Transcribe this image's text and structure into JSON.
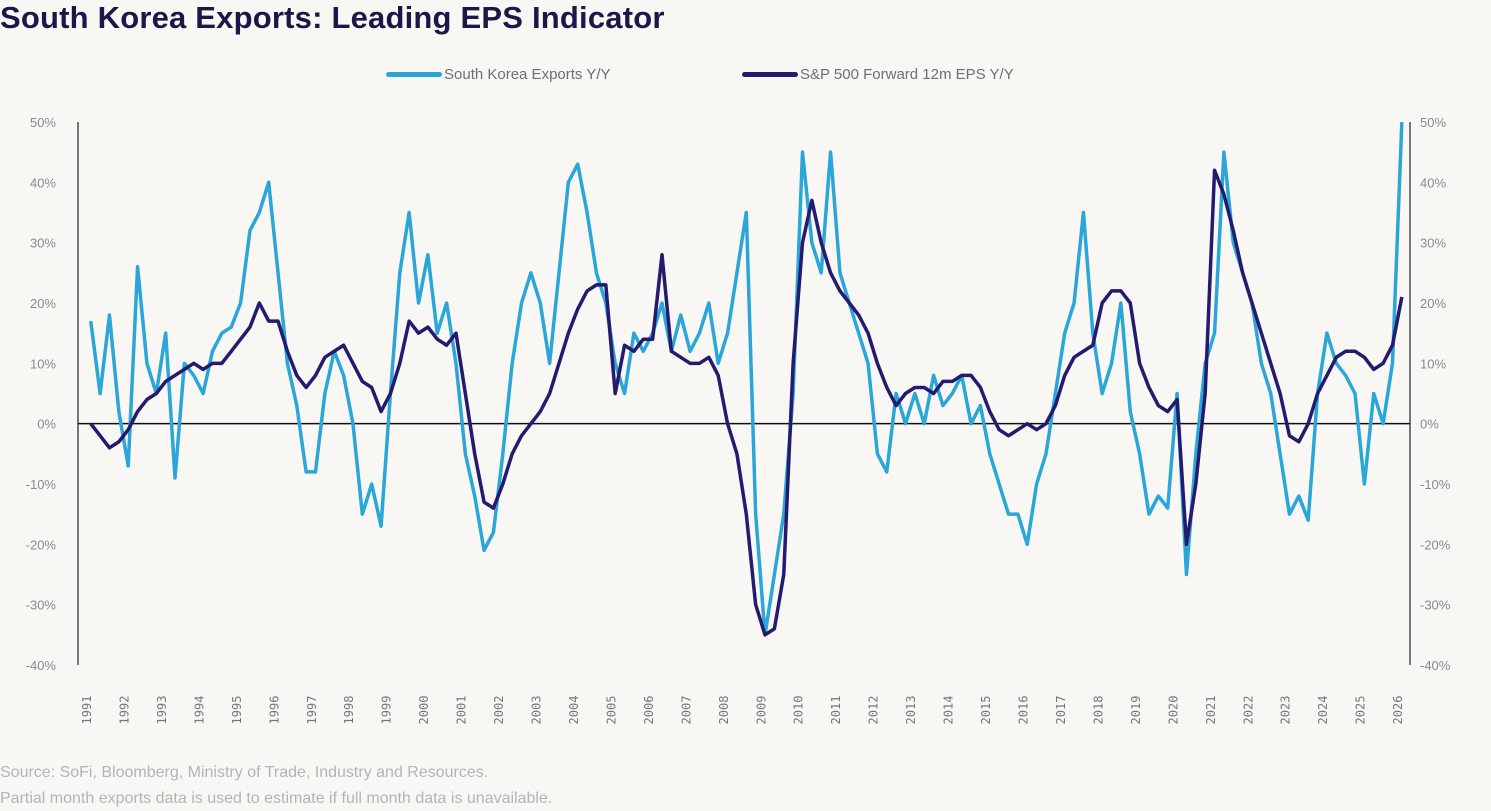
{
  "chart_data": {
    "type": "line",
    "title": "South Korea Exports: Leading EPS Indicator",
    "legend_position": "top-center",
    "ylim": [
      -40,
      50
    ],
    "y_ticks": [
      "50%",
      "40%",
      "30%",
      "20%",
      "10%",
      "0%",
      "-10%",
      "-20%",
      "-30%",
      "-40%"
    ],
    "y_tick_values": [
      50,
      40,
      30,
      20,
      10,
      0,
      -10,
      -20,
      -30,
      -40
    ],
    "x_ticks": [
      "1991",
      "1992",
      "1993",
      "1994",
      "1995",
      "1996",
      "1997",
      "1998",
      "1999",
      "2000",
      "2001",
      "2002",
      "2003",
      "2004",
      "2005",
      "2006",
      "2007",
      "2008",
      "2009",
      "2010",
      "2011",
      "2012",
      "2013",
      "2014",
      "2015",
      "2016",
      "2017",
      "2018",
      "2019",
      "2020",
      "2021",
      "2022",
      "2023",
      "2024",
      "2025",
      "2026"
    ],
    "x_unit": "quarterly, year 1991 Q1 through 2026 Q1",
    "series": [
      {
        "name": "South Korea Exports Y/Y",
        "color": "#2aa7d8",
        "values": [
          17,
          5,
          18,
          2,
          -7,
          26,
          10,
          5,
          15,
          -9,
          10,
          8,
          5,
          12,
          15,
          16,
          20,
          32,
          35,
          40,
          25,
          10,
          3,
          -8,
          -8,
          5,
          12,
          8,
          0,
          -15,
          -10,
          -17,
          5,
          25,
          35,
          20,
          28,
          15,
          20,
          10,
          -5,
          -12,
          -21,
          -18,
          -5,
          10,
          20,
          25,
          20,
          10,
          25,
          40,
          43,
          35,
          25,
          20,
          10,
          5,
          15,
          12,
          15,
          20,
          12,
          18,
          12,
          15,
          20,
          10,
          15,
          25,
          35,
          -15,
          -35,
          -25,
          -15,
          5,
          45,
          30,
          25,
          45,
          25,
          20,
          15,
          10,
          -5,
          -8,
          5,
          0,
          5,
          0,
          8,
          3,
          5,
          8,
          0,
          3,
          -5,
          -10,
          -15,
          -15,
          -20,
          -10,
          -5,
          5,
          15,
          20,
          35,
          15,
          5,
          10,
          20,
          2,
          -5,
          -15,
          -12,
          -14,
          5,
          -25,
          -5,
          10,
          15,
          45,
          30,
          25,
          20,
          10,
          5,
          -5,
          -15,
          -12,
          -16,
          5,
          15,
          10,
          8,
          5,
          -10,
          5,
          0,
          10,
          50
        ]
      },
      {
        "name": "S&P 500 Forward 12m EPS Y/Y",
        "color": "#241a6e",
        "values": [
          0,
          -2,
          -4,
          -3,
          -1,
          2,
          4,
          5,
          7,
          8,
          9,
          10,
          9,
          10,
          10,
          12,
          14,
          16,
          20,
          17,
          17,
          12,
          8,
          6,
          8,
          11,
          12,
          13,
          10,
          7,
          6,
          2,
          5,
          10,
          17,
          15,
          16,
          14,
          13,
          15,
          5,
          -5,
          -13,
          -14,
          -10,
          -5,
          -2,
          0,
          2,
          5,
          10,
          15,
          19,
          22,
          23,
          23,
          5,
          13,
          12,
          14,
          14,
          28,
          12,
          11,
          10,
          10,
          11,
          8,
          0,
          -5,
          -15,
          -30,
          -35,
          -34,
          -25,
          10,
          30,
          37,
          30,
          25,
          22,
          20,
          18,
          15,
          10,
          6,
          3,
          5,
          6,
          6,
          5,
          7,
          7,
          8,
          8,
          6,
          2,
          -1,
          -2,
          -1,
          0,
          -1,
          0,
          3,
          8,
          11,
          12,
          13,
          20,
          22,
          22,
          20,
          10,
          6,
          3,
          2,
          4,
          -20,
          -10,
          5,
          42,
          38,
          32,
          25,
          20,
          15,
          10,
          5,
          -2,
          -3,
          0,
          5,
          8,
          11,
          12,
          12,
          11,
          9,
          10,
          13,
          21
        ]
      }
    ]
  },
  "footer": {
    "source": "Source: SoFi, Bloomberg, Ministry of Trade, Industry and Resources.",
    "note": "Partial month exports data is used to estimate if full month data is unavailable."
  }
}
